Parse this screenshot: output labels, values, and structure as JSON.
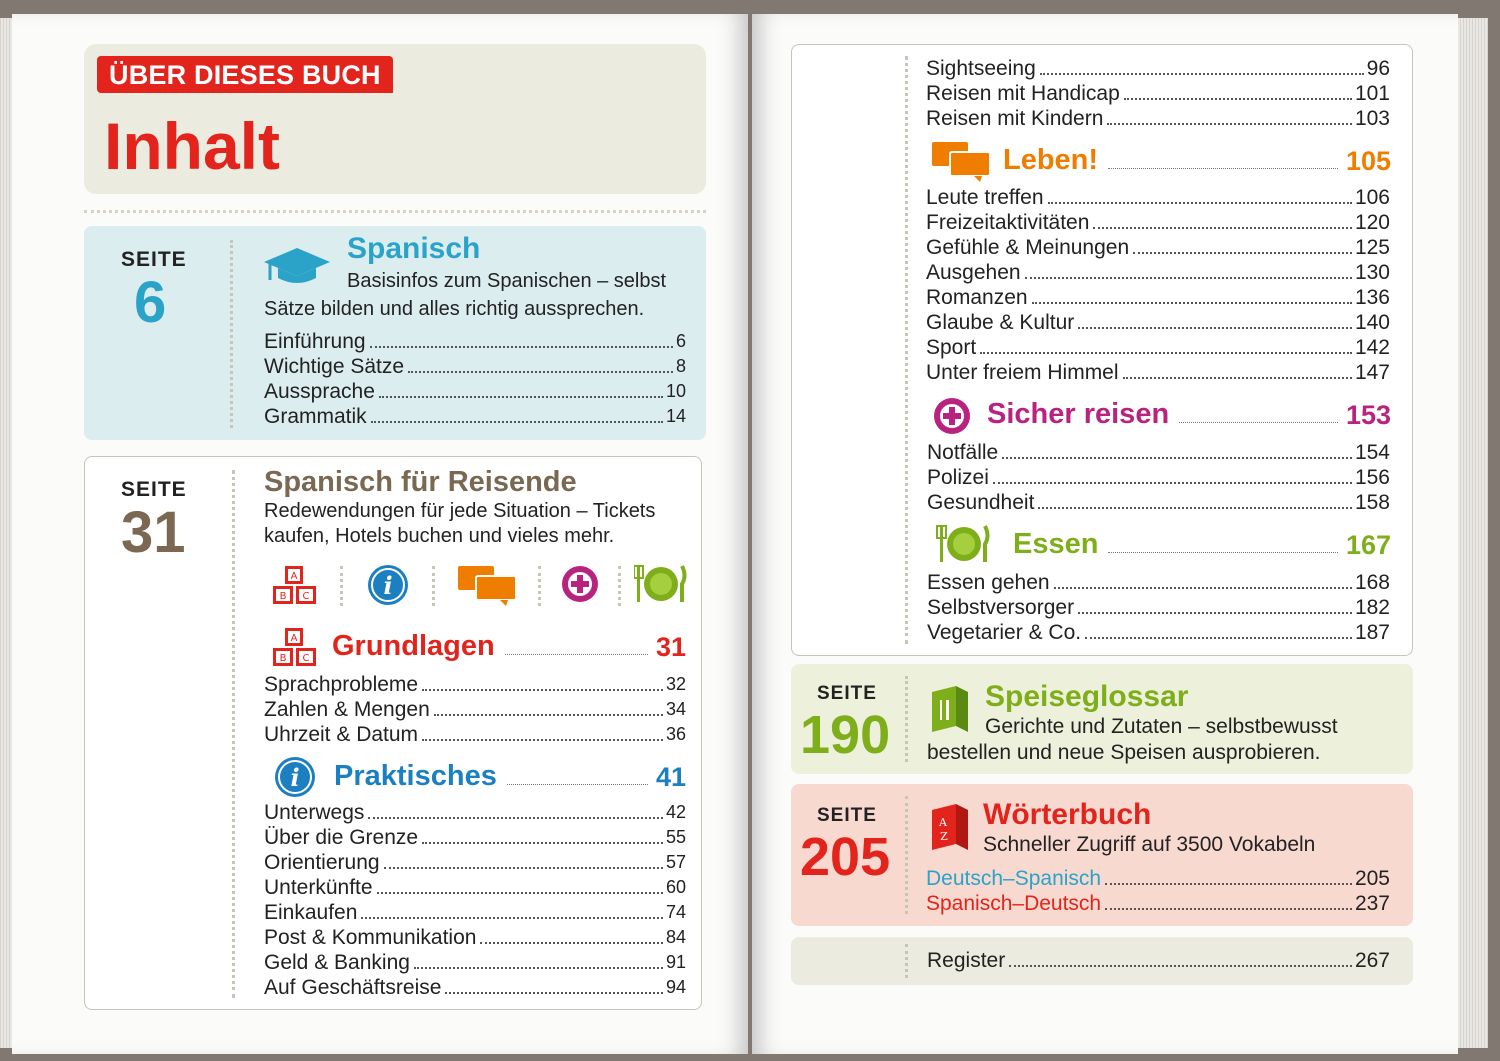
{
  "header": {
    "tag": "ÜBER DIESES BUCH",
    "title": "Inhalt"
  },
  "colors": {
    "red": "#e2241d",
    "teal": "#2ba3c9",
    "brown": "#7a6852",
    "orange": "#ef7d00",
    "magenta": "#b7237f",
    "green": "#7fae1b",
    "blue": "#1c7fc2"
  },
  "sections": {
    "spanisch": {
      "seite": "SEITE",
      "num": "6",
      "title": "Spanisch",
      "desc1": "Basisinfos zum Spanischen – selbst",
      "desc2": "Sätze bilden und alles richtig aussprechen.",
      "items": [
        {
          "label": "Einführung",
          "page": "6"
        },
        {
          "label": "Wichtige Sätze",
          "page": "8"
        },
        {
          "label": "Aussprache",
          "page": "10"
        },
        {
          "label": "Grammatik",
          "page": "14"
        }
      ]
    },
    "reisende": {
      "seite": "SEITE",
      "num": "31",
      "title": "Spanisch für Reisende",
      "desc1": "Redewendungen für jede Situation – Tickets",
      "desc2": "kaufen, Hotels buchen und vieles mehr.",
      "icons": [
        "abc-blocks-icon",
        "info-icon",
        "speech-bubbles-icon",
        "plus-cross-icon",
        "plate-cutlery-icon"
      ],
      "grundlagen": {
        "title": "Grundlagen",
        "page": "31",
        "items": [
          {
            "label": "Sprachprobleme",
            "page": "32"
          },
          {
            "label": "Zahlen & Mengen",
            "page": "34"
          },
          {
            "label": "Uhrzeit & Datum",
            "page": "36"
          }
        ]
      },
      "praktisches": {
        "title": "Praktisches",
        "page": "41",
        "items": [
          {
            "label": "Unterwegs",
            "page": "42"
          },
          {
            "label": "Über die Grenze",
            "page": "55"
          },
          {
            "label": "Orientierung",
            "page": "57"
          },
          {
            "label": "Unterkünfte",
            "page": "60"
          },
          {
            "label": "Einkaufen",
            "page": "74"
          },
          {
            "label": "Post & Kommunikation",
            "page": "84"
          },
          {
            "label": "Geld & Banking",
            "page": "91"
          },
          {
            "label": "Auf Geschäftsreise",
            "page": "94"
          }
        ]
      },
      "top_items": [
        {
          "label": "Sightseeing",
          "page": "96"
        },
        {
          "label": "Reisen mit Handicap",
          "page": "101"
        },
        {
          "label": "Reisen mit Kindern",
          "page": "103"
        }
      ],
      "leben": {
        "title": "Leben!",
        "page": "105",
        "items": [
          {
            "label": "Leute treffen",
            "page": "106"
          },
          {
            "label": "Freizeitaktivitäten",
            "page": "120"
          },
          {
            "label": "Gefühle & Meinungen",
            "page": "125"
          },
          {
            "label": "Ausgehen",
            "page": "130"
          },
          {
            "label": "Romanzen",
            "page": "136"
          },
          {
            "label": "Glaube & Kultur",
            "page": "140"
          },
          {
            "label": "Sport",
            "page": "142"
          },
          {
            "label": "Unter freiem Himmel",
            "page": "147"
          }
        ]
      },
      "sicher": {
        "title": "Sicher reisen",
        "page": "153",
        "items": [
          {
            "label": "Notfälle",
            "page": "154"
          },
          {
            "label": "Polizei",
            "page": "156"
          },
          {
            "label": "Gesundheit",
            "page": "158"
          }
        ]
      },
      "essen": {
        "title": "Essen",
        "page": "167",
        "items": [
          {
            "label": "Essen gehen",
            "page": "168"
          },
          {
            "label": "Selbstversorger",
            "page": "182"
          },
          {
            "label": "Vegetarier & Co.",
            "page": "187"
          }
        ]
      }
    },
    "glossar": {
      "seite": "SEITE",
      "num": "190",
      "title": "Speiseglossar",
      "desc1": "Gerichte und Zutaten – selbstbewusst",
      "desc2": "bestellen und neue Speisen ausprobieren."
    },
    "woerterbuch": {
      "seite": "SEITE",
      "num": "205",
      "title": "Wörterbuch",
      "desc1": "Schneller Zugriff auf 3500 Vokabeln",
      "items": [
        {
          "label": "Deutsch–Spanisch",
          "page": "205"
        },
        {
          "label": "Spanisch–Deutsch",
          "page": "237"
        }
      ]
    },
    "register": {
      "label": "Register",
      "page": "267"
    }
  }
}
